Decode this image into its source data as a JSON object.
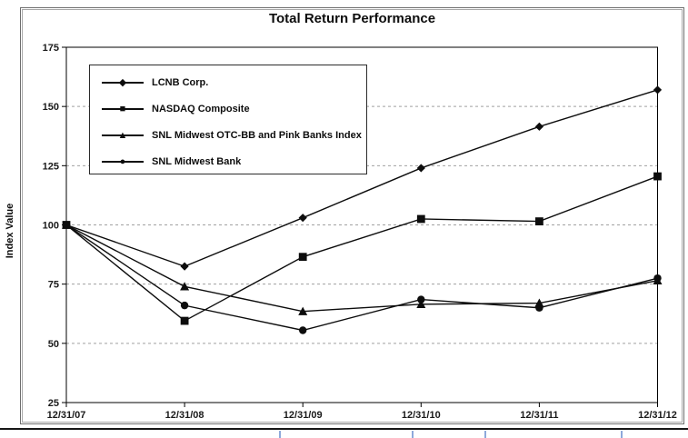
{
  "chart_data": {
    "type": "line",
    "title": "Total Return Performance",
    "ylabel": "Index Value",
    "xlabel": "",
    "x_labels": [
      "12/31/07",
      "12/31/08",
      "12/31/09",
      "12/31/10",
      "12/31/11",
      "12/31/12"
    ],
    "y_ticks": [
      25,
      50,
      75,
      100,
      125,
      150,
      175
    ],
    "ylim": [
      25,
      175
    ],
    "grid": "horizontal-dashed",
    "legend_position": "top-left-inside",
    "series": [
      {
        "name": "LCNB Corp.",
        "marker": "diamond",
        "marker_glyph": "◆",
        "color": "#0d0d0d",
        "values": [
          100,
          82.5,
          103,
          124,
          141.5,
          157
        ]
      },
      {
        "name": "NASDAQ Composite",
        "marker": "square",
        "marker_glyph": "■",
        "color": "#0d0d0d",
        "values": [
          100,
          59.5,
          86.5,
          102.5,
          101.5,
          120.5
        ]
      },
      {
        "name": "SNL Midwest OTC-BB and Pink Banks Index",
        "marker": "triangle",
        "marker_glyph": "▲",
        "color": "#0d0d0d",
        "values": [
          100,
          74,
          63.5,
          66.5,
          67,
          76.5
        ]
      },
      {
        "name": "SNL Midwest Bank",
        "marker": "circle",
        "marker_glyph": "●",
        "color": "#0d0d0d",
        "values": [
          100,
          66,
          55.5,
          68.5,
          65,
          77.5
        ]
      }
    ]
  },
  "colors": {
    "series": "#0d0d0d",
    "gridline": "#a0a0a0",
    "axis_border": "#000000",
    "frame": "#6e6e6e",
    "table_edge_tick": "#8ea9db"
  }
}
